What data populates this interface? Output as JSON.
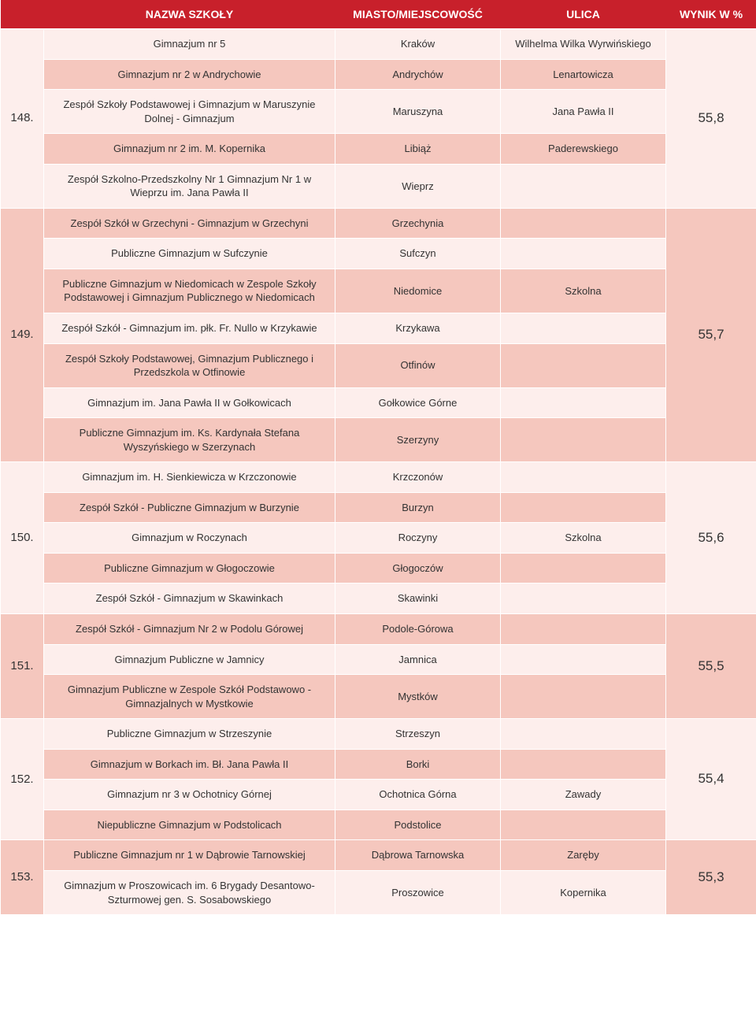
{
  "header": {
    "rank": "",
    "school": "NAZWA SZKOŁY",
    "city": "MIASTO/MIEJSCOWOŚĆ",
    "street": "ULICA",
    "score": "WYNIK W %"
  },
  "groups": [
    {
      "rank": "148.",
      "score": "55,8",
      "c1": "#fdeeec",
      "c2": "#f5c7be",
      "rows": [
        {
          "school": "Gimnazjum nr 5",
          "city": "Kraków",
          "street": "Wilhelma Wilka Wyrwińskiego"
        },
        {
          "school": "Gimnazjum nr 2 w Andrychowie",
          "city": "Andrychów",
          "street": "Lenartowicza"
        },
        {
          "school": "Zespół Szkoły Podstawowej i Gimnazjum w Maruszynie Dolnej - Gimnazjum",
          "city": "Maruszyna",
          "street": "Jana Pawła II"
        },
        {
          "school": "Gimnazjum nr 2 im. M. Kopernika",
          "city": "Libiąż",
          "street": "Paderewskiego"
        },
        {
          "school": "Zespół Szkolno-Przedszkolny Nr 1 Gimnazjum Nr 1 w Wieprzu im. Jana Pawła II",
          "city": "Wieprz",
          "street": ""
        }
      ]
    },
    {
      "rank": "149.",
      "score": "55,7",
      "c1": "#f5c7be",
      "c2": "#fdeeec",
      "rows": [
        {
          "school": "Zespół Szkół w Grzechyni - Gimnazjum w Grzechyni",
          "city": "Grzechynia",
          "street": ""
        },
        {
          "school": "Publiczne Gimnazjum w Sufczynie",
          "city": "Sufczyn",
          "street": ""
        },
        {
          "school": "Publiczne Gimnazjum w Niedomicach w Zespole Szkoły Podstawowej i Gimnazjum Publicznego w Niedomicach",
          "city": "Niedomice",
          "street": "Szkolna"
        },
        {
          "school": "Zespół Szkół - Gimnazjum im. płk. Fr. Nullo w Krzykawie",
          "city": "Krzykawa",
          "street": ""
        },
        {
          "school": "Zespół Szkoły Podstawowej, Gimnazjum Publicznego i Przedszkola w Otfinowie",
          "city": "Otfinów",
          "street": ""
        },
        {
          "school": "Gimnazjum im. Jana Pawła II w Gołkowicach",
          "city": "Gołkowice Górne",
          "street": ""
        },
        {
          "school": "Publiczne Gimnazjum im. Ks. Kardynała Stefana Wyszyńskiego w Szerzynach",
          "city": "Szerzyny",
          "street": ""
        }
      ]
    },
    {
      "rank": "150.",
      "score": "55,6",
      "c1": "#fdeeec",
      "c2": "#f5c7be",
      "rows": [
        {
          "school": "Gimnazjum im. H. Sienkiewicza w Krzczonowie",
          "city": "Krzczonów",
          "street": ""
        },
        {
          "school": "Zespół Szkół - Publiczne Gimnazjum w Burzynie",
          "city": "Burzyn",
          "street": ""
        },
        {
          "school": "Gimnazjum w Roczynach",
          "city": "Roczyny",
          "street": "Szkolna"
        },
        {
          "school": "Publiczne Gimnazjum w Głogoczowie",
          "city": "Głogoczów",
          "street": ""
        },
        {
          "school": "Zespół Szkół - Gimnazjum w Skawinkach",
          "city": "Skawinki",
          "street": ""
        }
      ]
    },
    {
      "rank": "151.",
      "score": "55,5",
      "c1": "#f5c7be",
      "c2": "#fdeeec",
      "rows": [
        {
          "school": "Zespół Szkół - Gimnazjum Nr 2 w Podolu Górowej",
          "city": "Podole-Górowa",
          "street": ""
        },
        {
          "school": "Gimnazjum Publiczne w Jamnicy",
          "city": "Jamnica",
          "street": ""
        },
        {
          "school": "Gimnazjum Publiczne w Zespole Szkół Podstawowo - Gimnazjalnych w Mystkowie",
          "city": "Mystków",
          "street": ""
        }
      ]
    },
    {
      "rank": "152.",
      "score": "55,4",
      "c1": "#fdeeec",
      "c2": "#f5c7be",
      "rows": [
        {
          "school": "Publiczne Gimnazjum w Strzeszynie",
          "city": "Strzeszyn",
          "street": ""
        },
        {
          "school": "Gimnazjum w Borkach im. Bł. Jana Pawła II",
          "city": "Borki",
          "street": ""
        },
        {
          "school": "Gimnazjum nr 3 w Ochotnicy Górnej",
          "city": "Ochotnica Górna",
          "street": "Zawady"
        },
        {
          "school": "Niepubliczne Gimnazjum w Podstolicach",
          "city": "Podstolice",
          "street": ""
        }
      ]
    },
    {
      "rank": "153.",
      "score": "55,3",
      "c1": "#f5c7be",
      "c2": "#fdeeec",
      "rows": [
        {
          "school": "Publiczne Gimnazjum nr 1 w Dąbrowie Tarnowskiej",
          "city": "Dąbrowa Tarnowska",
          "street": "Zaręby"
        },
        {
          "school": "Gimnazjum w Proszowicach im. 6 Brygady Desantowo-Szturmowej gen. S. Sosabowskiego",
          "city": "Proszowice",
          "street": "Kopernika"
        }
      ]
    }
  ]
}
